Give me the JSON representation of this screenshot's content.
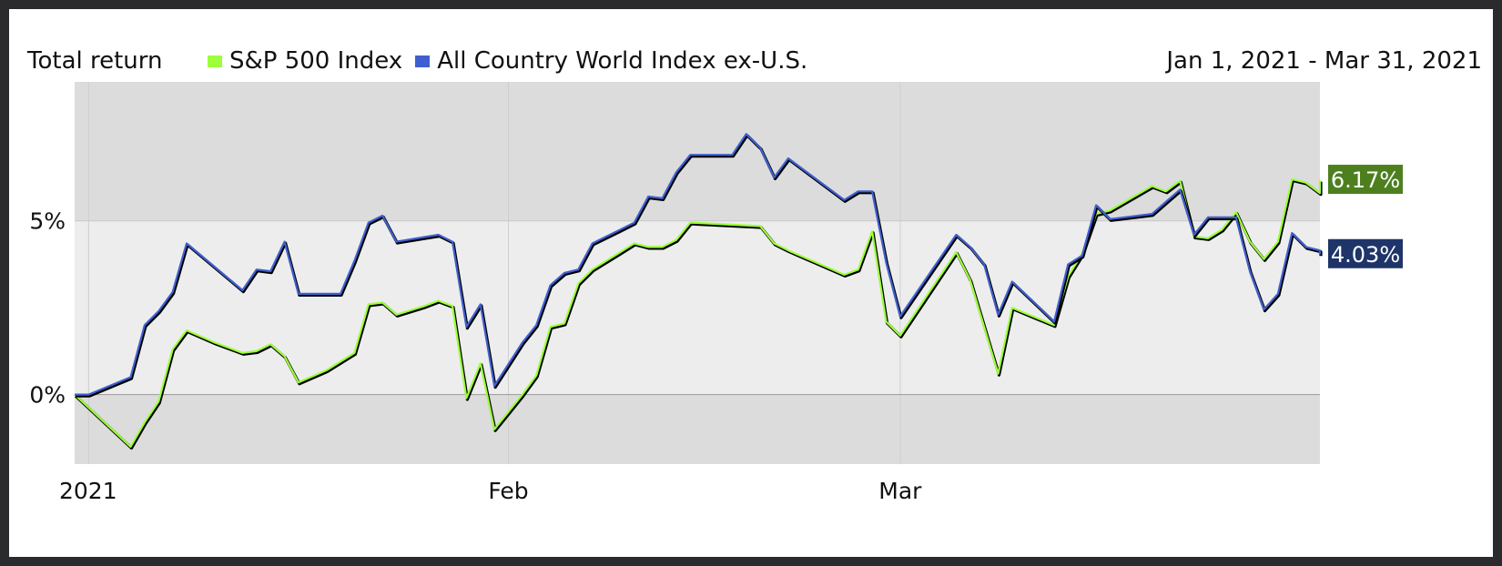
{
  "header": {
    "title": "Total return",
    "date_range": "Jan 1, 2021 - Mar 31, 2021"
  },
  "colors": {
    "sp500": "#9cff3a",
    "acwi": "#3f5fd0",
    "sp500_badge": "#4d7f1f",
    "acwi_badge": "#1f3468"
  },
  "chart_data": {
    "type": "line",
    "x_ticks": [
      "2021",
      "Feb",
      "Mar"
    ],
    "y_ticks": [
      "0%",
      "5%"
    ],
    "ylim": [
      -2.0,
      9.0
    ],
    "xlim": [
      "2021-01-01",
      "2021-03-31"
    ],
    "grid": true,
    "legend_position": "top",
    "end_labels": [
      "6.17%",
      "4.03%"
    ],
    "series": [
      {
        "name": "S&P 500 Index",
        "color": "#9cff3a",
        "end_label": "6.17%",
        "points": [
          [
            "2021-01-01",
            0.0
          ],
          [
            "2021-01-05",
            -1.5
          ],
          [
            "2021-01-06",
            -0.8
          ],
          [
            "2021-01-07",
            -0.2
          ],
          [
            "2021-01-08",
            1.3
          ],
          [
            "2021-01-09",
            1.85
          ],
          [
            "2021-01-11",
            1.5
          ],
          [
            "2021-01-13",
            1.2
          ],
          [
            "2021-01-14",
            1.25
          ],
          [
            "2021-01-15",
            1.45
          ],
          [
            "2021-01-16",
            1.1
          ],
          [
            "2021-01-17",
            0.35
          ],
          [
            "2021-01-19",
            0.7
          ],
          [
            "2021-01-21",
            1.2
          ],
          [
            "2021-01-22",
            2.6
          ],
          [
            "2021-01-23",
            2.65
          ],
          [
            "2021-01-24",
            2.3
          ],
          [
            "2021-01-26",
            2.55
          ],
          [
            "2021-01-27",
            2.7
          ],
          [
            "2021-01-28",
            2.55
          ],
          [
            "2021-01-29",
            -0.1
          ],
          [
            "2021-01-30",
            0.9
          ],
          [
            "2021-01-31",
            -1.0
          ],
          [
            "2021-02-01",
            -0.5
          ],
          [
            "2021-02-02",
            0.0
          ],
          [
            "2021-02-03",
            0.55
          ],
          [
            "2021-02-04",
            1.95
          ],
          [
            "2021-02-05",
            2.05
          ],
          [
            "2021-02-06",
            3.2
          ],
          [
            "2021-02-07",
            3.6
          ],
          [
            "2021-02-09",
            4.1
          ],
          [
            "2021-02-10",
            4.35
          ],
          [
            "2021-02-11",
            4.25
          ],
          [
            "2021-02-12",
            4.25
          ],
          [
            "2021-02-13",
            4.45
          ],
          [
            "2021-02-14",
            4.95
          ],
          [
            "2021-02-19",
            4.85
          ],
          [
            "2021-02-20",
            4.35
          ],
          [
            "2021-02-21",
            4.15
          ],
          [
            "2021-02-25",
            3.45
          ],
          [
            "2021-02-26",
            3.6
          ],
          [
            "2021-02-27",
            4.7
          ],
          [
            "2021-02-28",
            2.1
          ],
          [
            "2021-03-01",
            1.7
          ],
          [
            "2021-03-05",
            4.1
          ],
          [
            "2021-03-06",
            3.3
          ],
          [
            "2021-03-08",
            0.6
          ],
          [
            "2021-03-09",
            2.5
          ],
          [
            "2021-03-12",
            2.0
          ],
          [
            "2021-03-13",
            3.4
          ],
          [
            "2021-03-14",
            4.05
          ],
          [
            "2021-03-15",
            5.2
          ],
          [
            "2021-03-16",
            5.3
          ],
          [
            "2021-03-19",
            6.0
          ],
          [
            "2021-03-20",
            5.85
          ],
          [
            "2021-03-21",
            6.15
          ],
          [
            "2021-03-22",
            4.55
          ],
          [
            "2021-03-23",
            4.5
          ],
          [
            "2021-03-24",
            4.75
          ],
          [
            "2021-03-25",
            5.25
          ],
          [
            "2021-03-26",
            4.4
          ],
          [
            "2021-03-27",
            3.9
          ],
          [
            "2021-03-28",
            4.4
          ],
          [
            "2021-03-29",
            6.2
          ],
          [
            "2021-03-30",
            6.1
          ],
          [
            "2021-03-31",
            5.8
          ],
          [
            "2021-03-31",
            6.17
          ]
        ]
      },
      {
        "name": "All Country World Index ex-U.S.",
        "color": "#3f5fd0",
        "end_label": "4.03%",
        "points": [
          [
            "2021-01-01",
            0.0
          ],
          [
            "2021-01-02",
            0.0
          ],
          [
            "2021-01-05",
            0.5
          ],
          [
            "2021-01-06",
            2.0
          ],
          [
            "2021-01-07",
            2.4
          ],
          [
            "2021-01-08",
            2.95
          ],
          [
            "2021-01-09",
            4.35
          ],
          [
            "2021-01-13",
            3.0
          ],
          [
            "2021-01-14",
            3.6
          ],
          [
            "2021-01-15",
            3.55
          ],
          [
            "2021-01-16",
            4.4
          ],
          [
            "2021-01-17",
            2.9
          ],
          [
            "2021-01-20",
            2.9
          ],
          [
            "2021-01-21",
            3.85
          ],
          [
            "2021-01-22",
            4.95
          ],
          [
            "2021-01-23",
            5.15
          ],
          [
            "2021-01-24",
            4.4
          ],
          [
            "2021-01-27",
            4.6
          ],
          [
            "2021-01-28",
            4.4
          ],
          [
            "2021-01-29",
            1.95
          ],
          [
            "2021-01-30",
            2.6
          ],
          [
            "2021-01-31",
            0.25
          ],
          [
            "2021-02-02",
            1.5
          ],
          [
            "2021-02-03",
            2.0
          ],
          [
            "2021-02-04",
            3.15
          ],
          [
            "2021-02-05",
            3.5
          ],
          [
            "2021-02-06",
            3.6
          ],
          [
            "2021-02-07",
            4.35
          ],
          [
            "2021-02-09",
            4.75
          ],
          [
            "2021-02-10",
            4.95
          ],
          [
            "2021-02-11",
            5.7
          ],
          [
            "2021-02-12",
            5.65
          ],
          [
            "2021-02-13",
            6.4
          ],
          [
            "2021-02-14",
            6.9
          ],
          [
            "2021-02-17",
            6.9
          ],
          [
            "2021-02-18",
            7.5
          ],
          [
            "2021-02-19",
            7.1
          ],
          [
            "2021-02-20",
            6.25
          ],
          [
            "2021-02-21",
            6.8
          ],
          [
            "2021-02-25",
            5.6
          ],
          [
            "2021-02-26",
            5.85
          ],
          [
            "2021-02-27",
            5.85
          ],
          [
            "2021-02-28",
            3.8
          ],
          [
            "2021-03-01",
            2.25
          ],
          [
            "2021-03-05",
            4.6
          ],
          [
            "2021-03-06",
            4.25
          ],
          [
            "2021-03-07",
            3.75
          ],
          [
            "2021-03-08",
            2.3
          ],
          [
            "2021-03-09",
            3.25
          ],
          [
            "2021-03-12",
            2.1
          ],
          [
            "2021-03-13",
            3.75
          ],
          [
            "2021-03-14",
            4.0
          ],
          [
            "2021-03-15",
            5.45
          ],
          [
            "2021-03-16",
            5.05
          ],
          [
            "2021-03-19",
            5.2
          ],
          [
            "2021-03-20",
            5.55
          ],
          [
            "2021-03-21",
            5.9
          ],
          [
            "2021-03-22",
            4.6
          ],
          [
            "2021-03-23",
            5.1
          ],
          [
            "2021-03-25",
            5.1
          ],
          [
            "2021-03-26",
            3.55
          ],
          [
            "2021-03-27",
            2.45
          ],
          [
            "2021-03-28",
            2.9
          ],
          [
            "2021-03-29",
            4.65
          ],
          [
            "2021-03-30",
            4.25
          ],
          [
            "2021-03-31",
            4.15
          ],
          [
            "2021-03-31",
            4.03
          ]
        ]
      }
    ]
  }
}
